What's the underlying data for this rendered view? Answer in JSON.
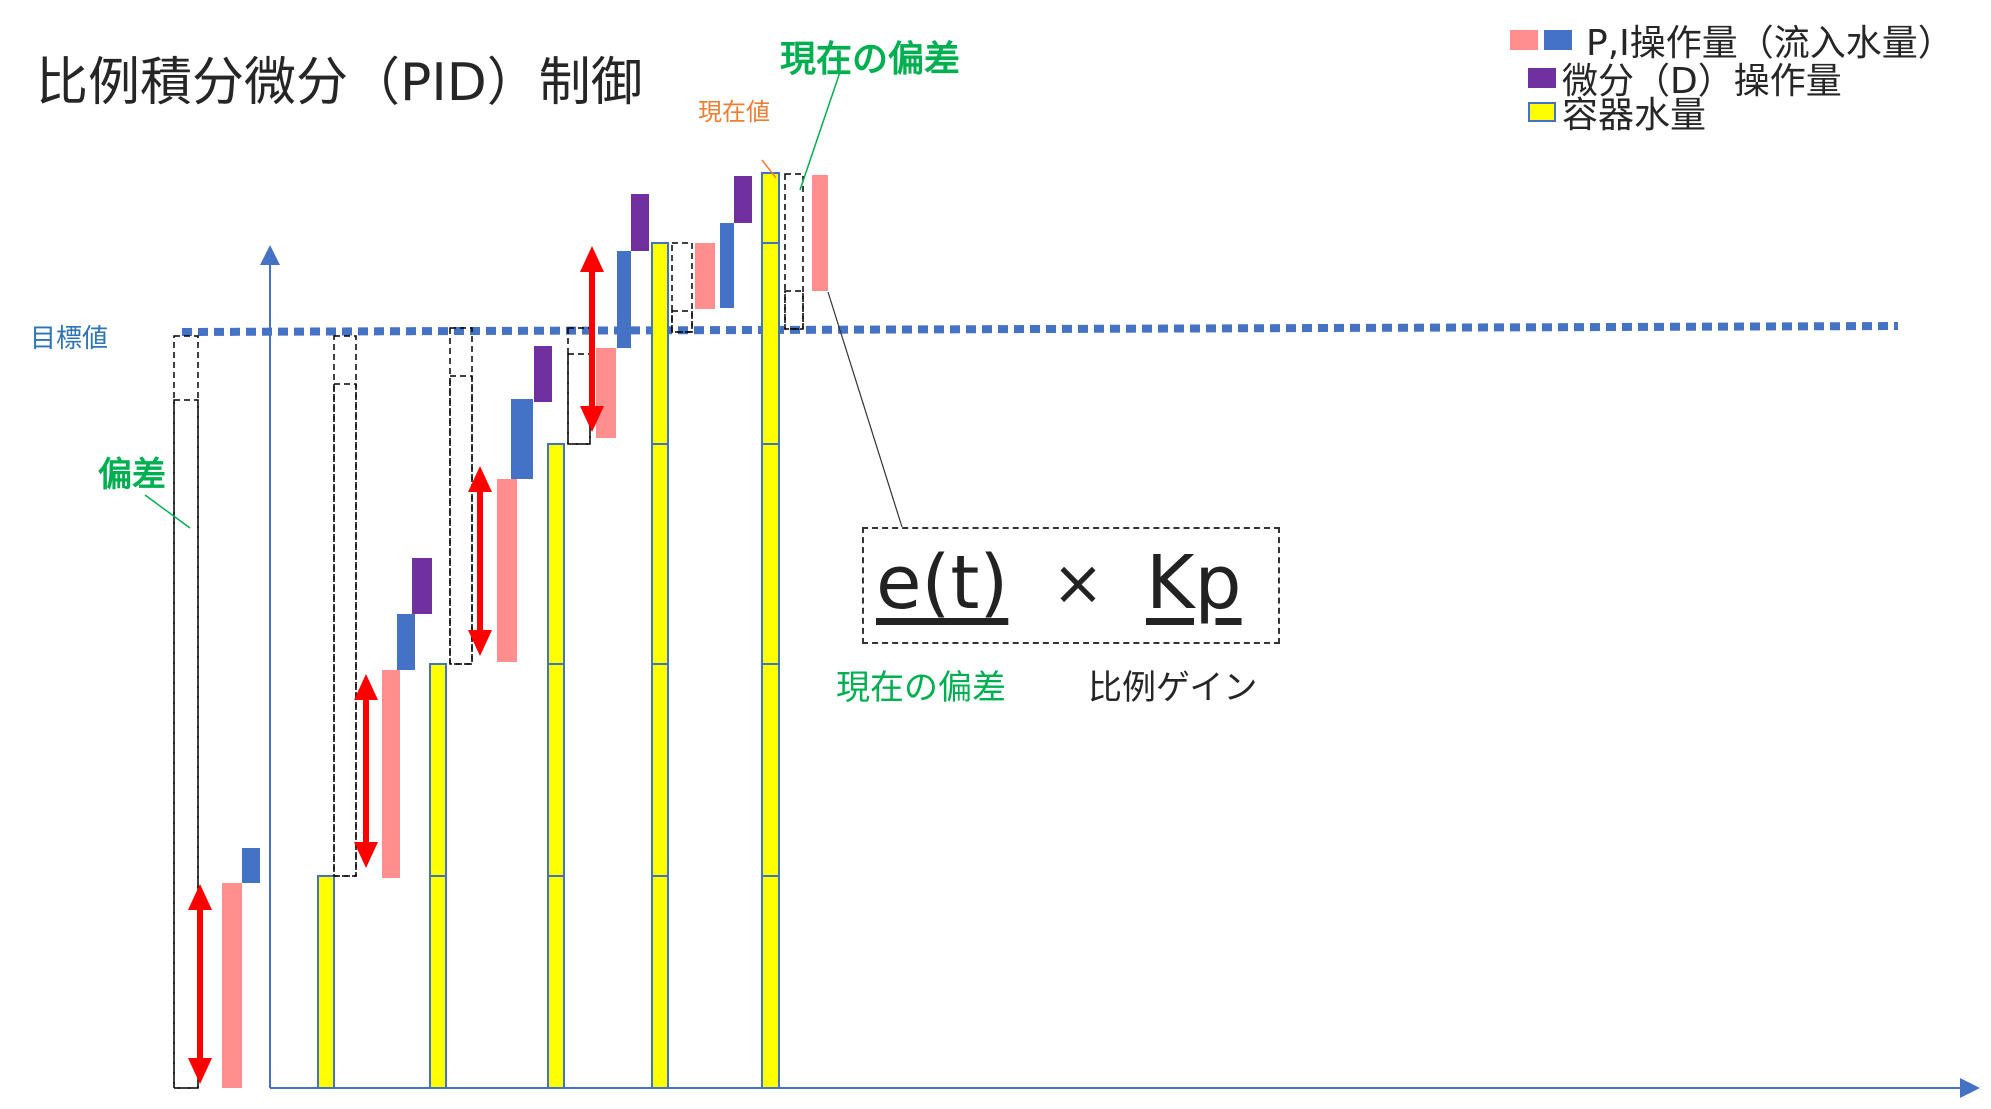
{
  "title": "比例積分微分（PID）制御",
  "labels": {
    "current_deviation_top": "現在の偏差",
    "current_value": "現在値",
    "target_value": "目標値",
    "deviation": "偏差",
    "formula_et": "e(t)",
    "formula_times": "×",
    "formula_kp": "Kp",
    "caption_current_deviation": "現在の偏差",
    "caption_proportional_gain": "比例ゲイン"
  },
  "legend": {
    "pi": "P,I操作量（流入水量）",
    "d": "微分（D）操作量",
    "water": "容器水量"
  },
  "colors": {
    "pi_proportional": "#ff8f8f",
    "pi_integral": "#4472c4",
    "derivative": "#7030a0",
    "water": "#ffff00",
    "water_border": "#4472c4",
    "target_line": "#4472c4",
    "arrow": "#ff0000",
    "emphasis": "#00b050",
    "current_value_label": "#ed7d31"
  }
}
